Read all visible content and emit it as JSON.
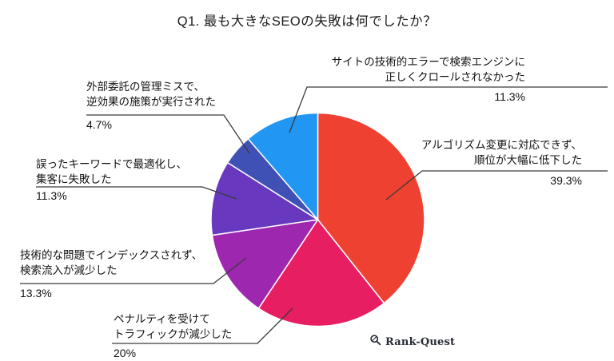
{
  "title": "Q1. 最も大きなSEOの失敗は何でしたか？",
  "chart_data": {
    "type": "pie",
    "title": "Q1. 最も大きなSEOの失敗は何でしたか？",
    "direction": "clockwise",
    "start_angle": "12-oclock",
    "legend_position": "none",
    "slices": [
      {
        "name": "algorithm-change",
        "line1": "アルゴリズム変更に対応できず、",
        "line2": "順位が大幅に低下した",
        "pct": "39.3%",
        "value": 39.3,
        "color": "#EF4132"
      },
      {
        "name": "penalty",
        "line1": "ペナルティを受けて",
        "line2": "トラフィックが減少した",
        "pct": "20%",
        "value": 20,
        "color": "#E81E63"
      },
      {
        "name": "not-indexed",
        "line1": "技術的な問題でインデックスされず、",
        "line2": "検索流入が減少した",
        "pct": "13.3%",
        "value": 13.3,
        "color": "#9E27B0"
      },
      {
        "name": "wrong-keywords",
        "line1": "誤ったキーワードで最適化し、",
        "line2": "集客に失敗した",
        "pct": "11.3%",
        "value": 11.3,
        "color": "#6838BE"
      },
      {
        "name": "outsourcing-mismanagement",
        "line1": "外部委託の管理ミスで、",
        "line2": "逆効果の施策が実行された",
        "pct": "4.7%",
        "value": 4.7,
        "color": "#3F51B5"
      },
      {
        "name": "crawl-error",
        "line1": "サイトの技術的エラーで検索エンジンに",
        "line2": "正しくクロールされなかった",
        "pct": "11.3%",
        "value": 11.3,
        "color": "#2196F3"
      }
    ],
    "leader_line_color": "#3a3a3a"
  },
  "footer": {
    "brand": "Rank-Quest"
  }
}
